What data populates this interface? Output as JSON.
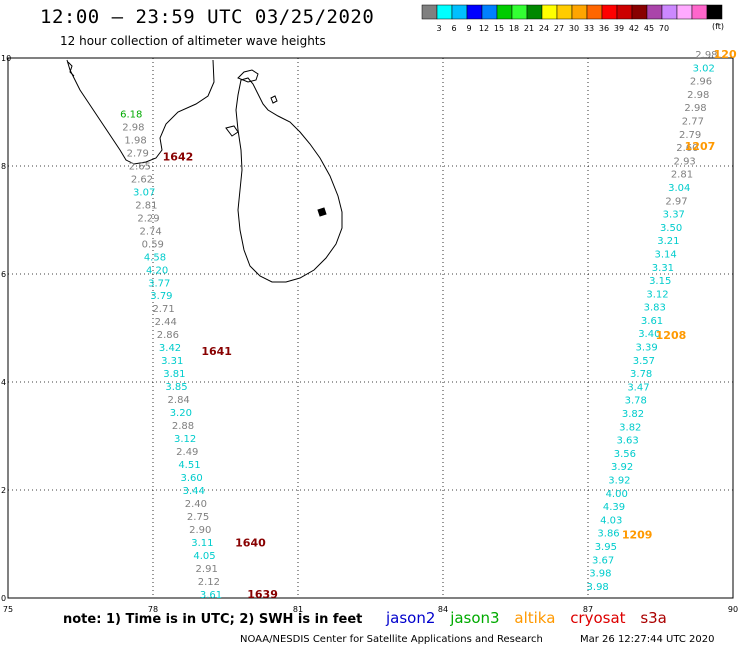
{
  "title": "12:00 – 23:59 UTC 03/25/2020",
  "subtitle": "12 hour collection of altimeter wave heights",
  "color_scale": {
    "units": "(ft)",
    "colors": [
      "#808080",
      "#00ffff",
      "#00bfff",
      "#0000ff",
      "#0080ff",
      "#00cc00",
      "#33ff33",
      "#008800",
      "#ffff00",
      "#ffcc00",
      "#ffa500",
      "#ff6600",
      "#ff0000",
      "#cc0000",
      "#880000",
      "#aa44aa",
      "#cc88ff",
      "#ffaaff",
      "#ff66cc",
      "#000000"
    ],
    "labels": [
      "3",
      "6",
      "9",
      "12",
      "15",
      "18",
      "21",
      "24",
      "27",
      "30",
      "33",
      "36",
      "39",
      "42",
      "45",
      "70"
    ]
  },
  "axes": {
    "lon_ticks": [
      "75",
      "78",
      "81",
      "84",
      "87",
      "90"
    ],
    "lat_ticks": [
      "0",
      "2",
      "4",
      "6",
      "8",
      "10"
    ]
  },
  "footer_note": "note:  1) Time is in UTC; 2) SWH is in feet",
  "legend": {
    "jason2": "jason2",
    "jason3": "jason3",
    "altika": "altika",
    "cryosat": "cryosat",
    "s3a": "s3a"
  },
  "credit": "NOAA/NESDIS Center for Satellite Applications and Research",
  "datestamp": "Mar 26 12:27:44 UTC 2020",
  "track_labels": [
    {
      "text": "1642",
      "color": "#880000",
      "lon": 78.2,
      "lat": 8.1
    },
    {
      "text": "1641",
      "color": "#880000",
      "lon": 79.0,
      "lat": 4.5
    },
    {
      "text": "1640",
      "color": "#880000",
      "lon": 79.7,
      "lat": 0.95
    },
    {
      "text": "1639",
      "color": "#880000",
      "lon": 79.95,
      "lat": 0.0
    },
    {
      "text": "120",
      "color": "#ff9900",
      "lon": 89.6,
      "lat": 10.0
    },
    {
      "text": "1207",
      "color": "#ff9900",
      "lon": 89.0,
      "lat": 8.3
    },
    {
      "text": "1208",
      "color": "#ff9900",
      "lon": 88.4,
      "lat": 4.8
    },
    {
      "text": "1209",
      "color": "#ff9900",
      "lon": 87.7,
      "lat": 1.1
    }
  ],
  "west_track": [
    {
      "v": "6.18",
      "c": "#00aa00"
    },
    {
      "v": "2.98",
      "c": "#808080"
    },
    {
      "v": "1.98",
      "c": "#808080"
    },
    {
      "v": "2.79",
      "c": "#808080"
    },
    {
      "v": "2.65",
      "c": "#808080"
    },
    {
      "v": "2.62",
      "c": "#808080"
    },
    {
      "v": "3.07",
      "c": "#00cccc"
    },
    {
      "v": "2.81",
      "c": "#808080"
    },
    {
      "v": "2.29",
      "c": "#808080"
    },
    {
      "v": "2.74",
      "c": "#808080"
    },
    {
      "v": "0.59",
      "c": "#808080"
    },
    {
      "v": "4.58",
      "c": "#00cccc"
    },
    {
      "v": "4.20",
      "c": "#00cccc"
    },
    {
      "v": "3.77",
      "c": "#00cccc"
    },
    {
      "v": "3.79",
      "c": "#00cccc"
    },
    {
      "v": "2.71",
      "c": "#808080"
    },
    {
      "v": "2.44",
      "c": "#808080"
    },
    {
      "v": "2.86",
      "c": "#808080"
    },
    {
      "v": "3.42",
      "c": "#00cccc"
    },
    {
      "v": "3.31",
      "c": "#00cccc"
    },
    {
      "v": "3.81",
      "c": "#00cccc"
    },
    {
      "v": "3.85",
      "c": "#00cccc"
    },
    {
      "v": "2.84",
      "c": "#808080"
    },
    {
      "v": "3.20",
      "c": "#00cccc"
    },
    {
      "v": "2.88",
      "c": "#808080"
    },
    {
      "v": "3.12",
      "c": "#00cccc"
    },
    {
      "v": "2.49",
      "c": "#808080"
    },
    {
      "v": "4.51",
      "c": "#00cccc"
    },
    {
      "v": "3.60",
      "c": "#00cccc"
    },
    {
      "v": "3.44",
      "c": "#00cccc"
    },
    {
      "v": "2.40",
      "c": "#808080"
    },
    {
      "v": "2.75",
      "c": "#808080"
    },
    {
      "v": "2.90",
      "c": "#808080"
    },
    {
      "v": "3.11",
      "c": "#00cccc"
    },
    {
      "v": "4.05",
      "c": "#00cccc"
    },
    {
      "v": "2.91",
      "c": "#808080"
    },
    {
      "v": "2.12",
      "c": "#808080"
    },
    {
      "v": "3.61",
      "c": "#00cccc"
    }
  ],
  "east_track": [
    {
      "v": "2.98",
      "c": "#808080"
    },
    {
      "v": "3.02",
      "c": "#00cccc"
    },
    {
      "v": "2.96",
      "c": "#808080"
    },
    {
      "v": "2.98",
      "c": "#808080"
    },
    {
      "v": "2.98",
      "c": "#808080"
    },
    {
      "v": "2.77",
      "c": "#808080"
    },
    {
      "v": "2.79",
      "c": "#808080"
    },
    {
      "v": "2.60",
      "c": "#808080"
    },
    {
      "v": "2.93",
      "c": "#808080"
    },
    {
      "v": "2.81",
      "c": "#808080"
    },
    {
      "v": "3.04",
      "c": "#00cccc"
    },
    {
      "v": "2.97",
      "c": "#808080"
    },
    {
      "v": "3.37",
      "c": "#00cccc"
    },
    {
      "v": "3.50",
      "c": "#00cccc"
    },
    {
      "v": "3.21",
      "c": "#00cccc"
    },
    {
      "v": "3.14",
      "c": "#00cccc"
    },
    {
      "v": "3.31",
      "c": "#00cccc"
    },
    {
      "v": "3.15",
      "c": "#00cccc"
    },
    {
      "v": "3.12",
      "c": "#00cccc"
    },
    {
      "v": "3.83",
      "c": "#00cccc"
    },
    {
      "v": "3.61",
      "c": "#00cccc"
    },
    {
      "v": "3.40",
      "c": "#00cccc"
    },
    {
      "v": "3.39",
      "c": "#00cccc"
    },
    {
      "v": "3.57",
      "c": "#00cccc"
    },
    {
      "v": "3.78",
      "c": "#00cccc"
    },
    {
      "v": "3.47",
      "c": "#00cccc"
    },
    {
      "v": "3.78",
      "c": "#00cccc"
    },
    {
      "v": "3.82",
      "c": "#00cccc"
    },
    {
      "v": "3.82",
      "c": "#00cccc"
    },
    {
      "v": "3.63",
      "c": "#00cccc"
    },
    {
      "v": "3.56",
      "c": "#00cccc"
    },
    {
      "v": "3.92",
      "c": "#00cccc"
    },
    {
      "v": "3.92",
      "c": "#00cccc"
    },
    {
      "v": "4.00",
      "c": "#00cccc"
    },
    {
      "v": "4.39",
      "c": "#00cccc"
    },
    {
      "v": "4.03",
      "c": "#00cccc"
    },
    {
      "v": "3.86",
      "c": "#00cccc"
    },
    {
      "v": "3.95",
      "c": "#00cccc"
    },
    {
      "v": "3.67",
      "c": "#00cccc"
    },
    {
      "v": "3.98",
      "c": "#00cccc"
    },
    {
      "v": "3.98",
      "c": "#00cccc"
    }
  ]
}
